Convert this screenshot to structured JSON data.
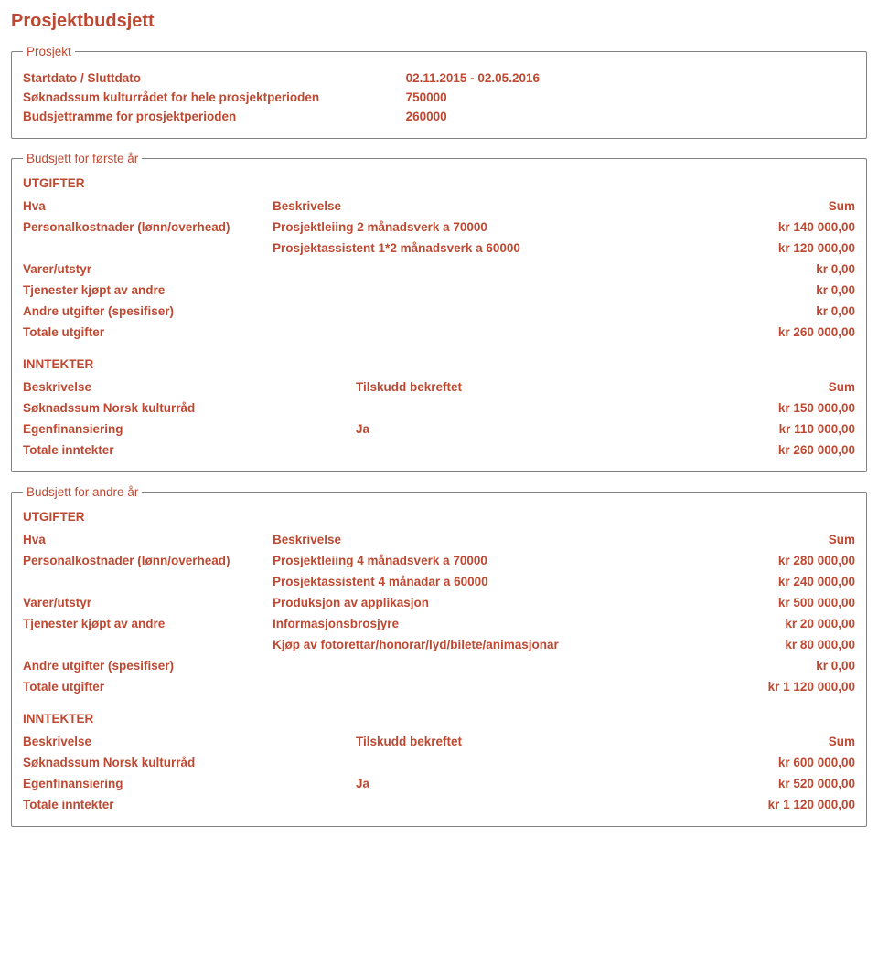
{
  "title": "Prosjektbudsjett",
  "prosjekt": {
    "legend": "Prosjekt",
    "rows": [
      {
        "label": "Startdato / Sluttdato",
        "value": "02.11.2015 - 02.05.2016"
      },
      {
        "label": "Søknadssum kulturrådet for hele prosjektperioden",
        "value": "750000"
      },
      {
        "label": "Budsjettramme for prosjektperioden",
        "value": "260000"
      }
    ]
  },
  "budget1": {
    "legend": "Budsjett for første år",
    "utgifter": {
      "section": "UTGIFTER",
      "headers": {
        "c1": "Hva",
        "c2": "Beskrivelse",
        "c3": "Sum"
      },
      "rows": [
        {
          "c1": "Personalkostnader (lønn/overhead)",
          "c2": "Prosjektleiing 2 månadsverk a 70000",
          "c3": "kr 140 000,00"
        },
        {
          "c1": "",
          "c2": "Prosjektassistent 1*2 månadsverk a 60000",
          "c3": "kr 120 000,00"
        },
        {
          "c1": "Varer/utstyr",
          "c2": "",
          "c3": "kr 0,00"
        },
        {
          "c1": "Tjenester kjøpt av andre",
          "c2": "",
          "c3": "kr 0,00"
        },
        {
          "c1": "Andre utgifter (spesifiser)",
          "c2": "",
          "c3": "kr 0,00"
        },
        {
          "c1": "Totale utgifter",
          "c2": "",
          "c3": "kr 260 000,00"
        }
      ]
    },
    "inntekter": {
      "section": "INNTEKTER",
      "headers": {
        "c1": "Beskrivelse",
        "c2": "Tilskudd bekreftet",
        "c3": "Sum"
      },
      "rows": [
        {
          "c1": "Søknadssum Norsk kulturråd",
          "c2": "",
          "c3": "kr 150 000,00"
        },
        {
          "c1": "Egenfinansiering",
          "c2": "Ja",
          "c3": "kr 110 000,00"
        },
        {
          "c1": "Totale inntekter",
          "c2": "",
          "c3": "kr 260 000,00"
        }
      ]
    }
  },
  "budget2": {
    "legend": "Budsjett for andre år",
    "utgifter": {
      "section": "UTGIFTER",
      "headers": {
        "c1": "Hva",
        "c2": "Beskrivelse",
        "c3": "Sum"
      },
      "rows": [
        {
          "c1": "Personalkostnader (lønn/overhead)",
          "c2": "Prosjektleiing 4 månadsverk a 70000",
          "c3": "kr 280 000,00"
        },
        {
          "c1": "",
          "c2": "Prosjektassistent 4 månadar a 60000",
          "c3": "kr 240 000,00"
        },
        {
          "c1": "Varer/utstyr",
          "c2": "Produksjon av applikasjon",
          "c3": "kr 500 000,00"
        },
        {
          "c1": "Tjenester kjøpt av andre",
          "c2": "Informasjonsbrosjyre",
          "c3": "kr 20 000,00"
        },
        {
          "c1": "",
          "c2": "Kjøp av fotorettar/honorar/lyd/bilete/animasjonar",
          "c3": "kr 80 000,00"
        },
        {
          "c1": "Andre utgifter (spesifiser)",
          "c2": "",
          "c3": "kr 0,00"
        },
        {
          "c1": "Totale utgifter",
          "c2": "",
          "c3": "kr 1 120 000,00"
        }
      ]
    },
    "inntekter": {
      "section": "INNTEKTER",
      "headers": {
        "c1": "Beskrivelse",
        "c2": "Tilskudd bekreftet",
        "c3": "Sum"
      },
      "rows": [
        {
          "c1": "Søknadssum Norsk kulturråd",
          "c2": "",
          "c3": "kr 600 000,00"
        },
        {
          "c1": "Egenfinansiering",
          "c2": "Ja",
          "c3": "kr 520 000,00"
        },
        {
          "c1": "Totale inntekter",
          "c2": "",
          "c3": "kr 1 120 000,00"
        }
      ]
    }
  }
}
